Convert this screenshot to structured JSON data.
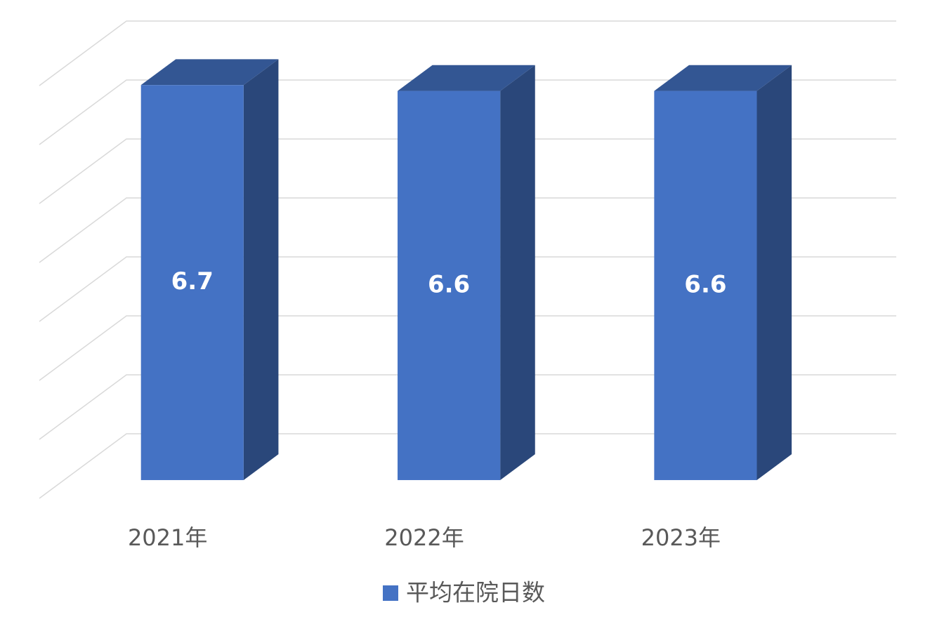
{
  "chart_data": {
    "type": "bar3d",
    "categories": [
      "2021年",
      "2022年",
      "2023年"
    ],
    "series": [
      {
        "name": "平均在院日数",
        "color": "#4472c4",
        "values": [
          6.7,
          6.6,
          6.6
        ]
      }
    ],
    "ylim": [
      0,
      7
    ],
    "yticks": [
      0,
      1,
      2,
      3,
      4,
      5,
      6,
      7
    ],
    "grid": true,
    "legend": "bottom"
  }
}
